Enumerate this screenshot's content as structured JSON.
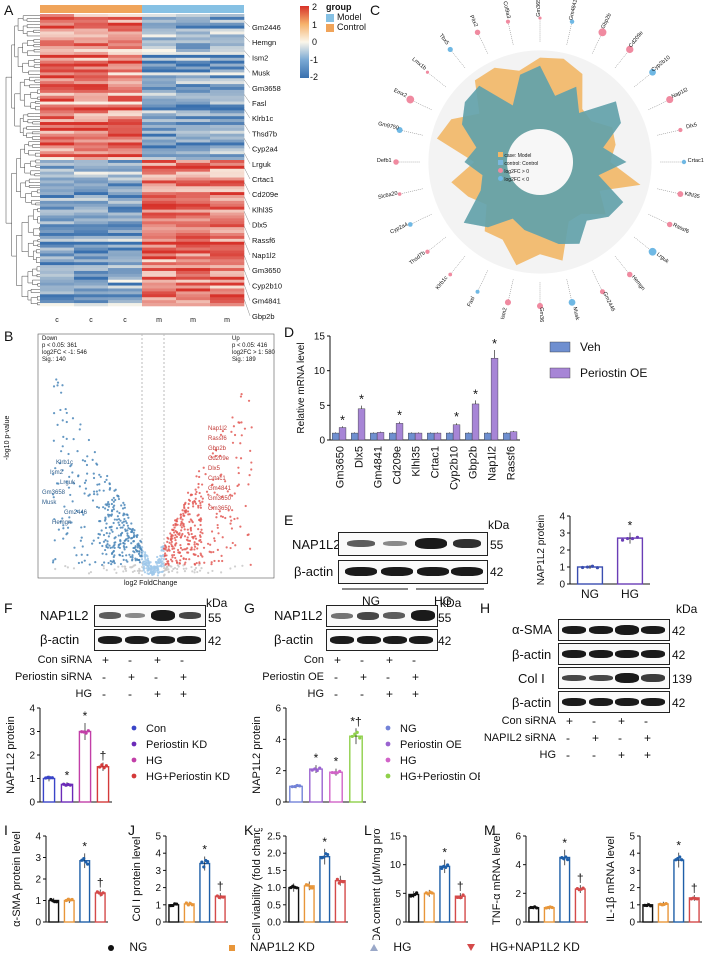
{
  "panels": {
    "A": {
      "label": "A",
      "legend_title": "group",
      "legend_items": [
        "Model",
        "Control"
      ],
      "scale_ticks": [
        "2",
        "1",
        "0",
        "-1",
        "-2"
      ],
      "genes": [
        "Gm2446",
        "Hemgn",
        "Ism2",
        "Musk",
        "Gm3658",
        "Fasl",
        "Klrb1c",
        "Thsd7b",
        "Cyp2a4",
        "Lrguk",
        "Crtac1",
        "Cd209e",
        "Klhl35",
        "Dlx5",
        "Rassf6",
        "Nap1l2",
        "Gm3650",
        "Cyp2b10",
        "Gm4841",
        "Gbp2b"
      ],
      "group_ticks": [
        "c",
        "c",
        "c",
        "m",
        "m",
        "m"
      ],
      "colors": {
        "control": "#f0a45a",
        "model": "#86c1e4",
        "high": "#d7322a",
        "mid": "#fbf6ea",
        "low": "#3970ae"
      }
    },
    "B": {
      "label": "B",
      "down_box": [
        "Down",
        "p < 0.05: 361",
        "log2FC < -1: 546",
        "Sig.: 140"
      ],
      "up_box": [
        "Up",
        "p < 0.05: 416",
        "log2FC > 1: 580",
        "Sig.: 189"
      ],
      "xlabel": "log2 FoldChange",
      "ylabel": "-log10 p-value",
      "left_genes": [
        "Klrb1c",
        "Ism2",
        "Lrguk",
        "Gm3658",
        "Musk",
        "Gm2446",
        "Hemgn"
      ],
      "right_genes": [
        "Nap1l2",
        "Rassf6",
        "Gbp2b",
        "Cd209e",
        "Dlx5",
        "Crtac1",
        "Gm4841",
        "Gm3650",
        "Gm3650"
      ],
      "colors": {
        "down": "#4a86b8",
        "up": "#e35a56",
        "ns": "#c8c8c8"
      }
    },
    "C": {
      "label": "C",
      "legend": [
        "case: Model",
        "control: Control",
        "log2FC > 0",
        "log2FC < 0"
      ],
      "genes": [
        "Gm3650",
        "Gm4841",
        "Gbp2b",
        "Cd209e",
        "Cyp2b10",
        "Nap1l2",
        "Dlx5",
        "Crtac1",
        "Klhl35",
        "Rassf6",
        "Lrguk",
        "Hemgn",
        "Gm2446",
        "Musk",
        "Gm3658",
        "Ism2",
        "Fasl",
        "Klrb1c",
        "Thsd7b",
        "Cyp2a4",
        "Slc6a20",
        "Defb1",
        "Gm9750",
        "Emx2",
        "Lmx1b",
        "Tbx5",
        "Pitx2",
        "Col9a3"
      ],
      "colors": {
        "case": "#f2b766",
        "control": "#7bb7dd",
        "overlap": "#4e8f7f",
        "pos": "#f08aa0",
        "neg": "#6fb8e4"
      }
    },
    "D": {
      "label": "D",
      "chart_data": {
        "type": "bar",
        "title": "",
        "ylabel": "Relative mRNA level",
        "xlabel": "",
        "ylim": [
          0,
          15
        ],
        "yticks": [
          "0",
          "5",
          "10",
          "15"
        ],
        "categories": [
          "Gm3650",
          "Dlx5",
          "Gm4841",
          "Cd209e",
          "Klhl35",
          "Crtac1",
          "Cyp2b10",
          "Gbp2b",
          "Nap1l2",
          "Rassf6"
        ],
        "series": [
          {
            "name": "Veh",
            "color": "#6f8fd0",
            "values": [
              1.0,
              1.0,
              1.0,
              1.0,
              1.0,
              1.0,
              1.0,
              1.0,
              1.0,
              1.0
            ]
          },
          {
            "name": "Periostin OE",
            "color": "#a785d6",
            "values": [
              1.8,
              4.5,
              1.1,
              2.4,
              1.0,
              1.0,
              2.2,
              5.2,
              11.8,
              1.2
            ]
          }
        ],
        "significant": [
          "*",
          "*",
          "",
          "*",
          "",
          "",
          "*",
          "*",
          "*",
          ""
        ]
      }
    },
    "E": {
      "label": "E",
      "rows": [
        "NAP1L2",
        "β-actin"
      ],
      "kda": "kDa",
      "sizes": [
        "55",
        "42"
      ],
      "groups": [
        "NG",
        "HG"
      ],
      "chart_data": {
        "type": "bar",
        "ylabel": "NAP1L2 protein",
        "categories": [
          "NG",
          "HG"
        ],
        "values": [
          1.0,
          2.7
        ],
        "ylim": [
          0,
          4
        ],
        "yticks": [
          "0",
          "1",
          "2",
          "3",
          "4"
        ],
        "significant": [
          "",
          "*"
        ],
        "colors": [
          "#3a4db0",
          "#6a3db6"
        ]
      }
    },
    "F": {
      "label": "F",
      "rows": [
        "NAP1L2",
        "β-actin"
      ],
      "kda": "kDa",
      "sizes": [
        "55",
        "42"
      ],
      "cond_labels": [
        "Con siRNA",
        "Periostin siRNA",
        "HG"
      ],
      "cond_signs": [
        [
          "+",
          "-",
          "+",
          "-"
        ],
        [
          "-",
          "+",
          "-",
          "+"
        ],
        [
          "-",
          "-",
          "+",
          "+"
        ]
      ],
      "legend": [
        "Con",
        "Periostin KD",
        "HG",
        "HG+Periostin KD"
      ],
      "chart_data": {
        "type": "bar",
        "ylabel": "NAP1L2 protein",
        "categories": [
          "Con",
          "Periostin KD",
          "HG",
          "HG+Periostin KD"
        ],
        "values": [
          1.0,
          0.75,
          3.0,
          1.5
        ],
        "ylim": [
          0,
          4
        ],
        "yticks": [
          "0",
          "1",
          "2",
          "3",
          "4"
        ],
        "significant": [
          "",
          "*",
          "*",
          "†"
        ],
        "colors": [
          "#3a45c8",
          "#6b2bb8",
          "#c23fa8",
          "#d43a3a"
        ]
      }
    },
    "G": {
      "label": "G",
      "rows": [
        "NAP1L2",
        "β-actin"
      ],
      "kda": "kDa",
      "sizes": [
        "55",
        "42"
      ],
      "cond_labels": [
        "Con",
        "Periostin OE",
        "HG"
      ],
      "cond_signs": [
        [
          "+",
          "-",
          "+",
          "-"
        ],
        [
          "-",
          "+",
          "-",
          "+"
        ],
        [
          "-",
          "-",
          "+",
          "+"
        ]
      ],
      "legend": [
        "NG",
        "Periostin OE",
        "HG",
        "HG+Periostin OE"
      ],
      "chart_data": {
        "type": "bar",
        "ylabel": "NAP1L2 protein",
        "categories": [
          "NG",
          "Periostin OE",
          "HG",
          "HG+Periostin OE"
        ],
        "values": [
          1.0,
          2.1,
          1.9,
          4.2
        ],
        "ylim": [
          0,
          6
        ],
        "yticks": [
          "0",
          "2",
          "4",
          "6"
        ],
        "significant": [
          "",
          "*",
          "*",
          "*†"
        ],
        "colors": [
          "#7383d8",
          "#9a63d0",
          "#d163c8",
          "#8fd04a"
        ]
      }
    },
    "H": {
      "label": "H",
      "rows": [
        "α-SMA",
        "β-actin",
        "Col I",
        "β-actin"
      ],
      "kda": "kDa",
      "sizes": [
        "42",
        "42",
        "139",
        "42"
      ],
      "cond_labels": [
        "Con siRNA",
        "NAPIL2 siRNA",
        "HG"
      ],
      "cond_signs": [
        [
          "+",
          "-",
          "+",
          "-"
        ],
        [
          "-",
          "+",
          "-",
          "+"
        ],
        [
          "-",
          "-",
          "+",
          "+"
        ]
      ]
    },
    "I": {
      "label": "I",
      "chart_data": {
        "type": "bar",
        "ylabel": "α-SMA protein level",
        "categories": [
          "NG",
          "NAP1L2 KD",
          "HG",
          "HG+NAP1L2 KD"
        ],
        "values": [
          1.0,
          1.0,
          2.85,
          1.35
        ],
        "ylim": [
          0,
          4
        ],
        "yticks": [
          "0",
          "1",
          "2",
          "3",
          "4"
        ],
        "significant": [
          "",
          "",
          "*",
          "†"
        ]
      }
    },
    "J": {
      "label": "J",
      "chart_data": {
        "type": "bar",
        "ylabel": "Col I protein level",
        "categories": [
          "NG",
          "NAP1L2 KD",
          "HG",
          "HG+NAP1L2 KD"
        ],
        "values": [
          1.0,
          1.05,
          3.4,
          1.5
        ],
        "ylim": [
          0,
          5
        ],
        "yticks": [
          "0",
          "1",
          "2",
          "3",
          "4",
          "5"
        ],
        "significant": [
          "",
          "",
          "*",
          "†"
        ]
      }
    },
    "K": {
      "label": "K",
      "chart_data": {
        "type": "bar",
        "ylabel": "Cell viability (fold change)",
        "categories": [
          "NG",
          "NAP1L2 KD",
          "HG",
          "HG+NAP1L2 KD"
        ],
        "values": [
          1.0,
          1.05,
          1.9,
          1.2
        ],
        "ylim": [
          0,
          2.5
        ],
        "yticks": [
          "0.0",
          "0.5",
          "1.0",
          "1.5",
          "2.0",
          "2.5"
        ],
        "significant": [
          "",
          "",
          "*",
          ""
        ]
      }
    },
    "L": {
      "label": "L",
      "chart_data": {
        "type": "bar",
        "ylabel": "MDA content (μM/mg protein)",
        "categories": [
          "NG",
          "NAP1L2 KD",
          "HG",
          "HG+NAP1L2 KD"
        ],
        "values": [
          4.8,
          5.0,
          9.7,
          4.5
        ],
        "ylim": [
          0,
          15
        ],
        "yticks": [
          "0",
          "5",
          "10",
          "15"
        ],
        "significant": [
          "",
          "",
          "*",
          "†"
        ]
      }
    },
    "M": {
      "label": "M",
      "chart_data": {
        "type": "bar",
        "ylabel": "TNF-α mRNA level",
        "categories": [
          "NG",
          "NAP1L2 KD",
          "HG",
          "HG+NAP1L2 KD"
        ],
        "values": [
          1.0,
          1.0,
          4.5,
          2.3
        ],
        "ylim": [
          0,
          6
        ],
        "yticks": [
          "0",
          "2",
          "4",
          "6"
        ],
        "significant": [
          "",
          "",
          "*",
          "†"
        ]
      }
    },
    "N": {
      "chart_data": {
        "type": "bar",
        "ylabel": "IL-1β mRNA level",
        "categories": [
          "NG",
          "NAP1L2 KD",
          "HG",
          "HG+NAP1L2 KD"
        ],
        "values": [
          1.0,
          1.05,
          3.6,
          1.4
        ],
        "ylim": [
          0,
          5
        ],
        "yticks": [
          "0",
          "1",
          "2",
          "3",
          "4",
          "5"
        ],
        "significant": [
          "",
          "",
          "*",
          "†"
        ]
      }
    }
  },
  "bottom_legend": [
    "NG",
    "NAP1L2 KD",
    "HG",
    "HG+NAP1L2 KD"
  ],
  "bottom_colors": {
    "NG": "#111111",
    "KD": "#e8963a",
    "HG": "#1f5fa8",
    "HGKD": "#d44a4a"
  }
}
